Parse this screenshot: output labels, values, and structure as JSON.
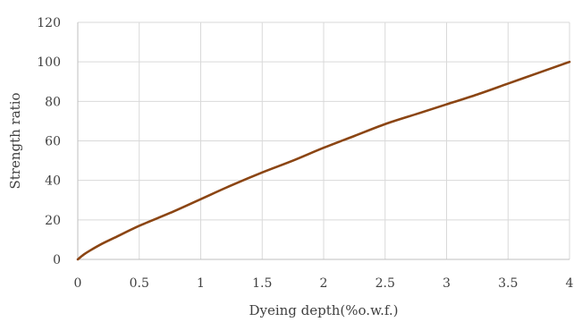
{
  "chart_data": {
    "type": "line",
    "title": "",
    "xlabel": "Dyeing depth(%o.w.f.)",
    "ylabel": "Strength ratio",
    "xlim": [
      0,
      4
    ],
    "ylim": [
      0,
      120
    ],
    "x_ticks": [
      "0",
      "0.5",
      "1",
      "1.5",
      "2",
      "2.5",
      "3",
      "3.5",
      "4"
    ],
    "y_ticks": [
      "0",
      "20",
      "40",
      "60",
      "80",
      "100",
      "120"
    ],
    "grid": true,
    "legend": "none",
    "series": [
      {
        "color": "#8B4513",
        "x": [
          0,
          0.05,
          0.1,
          0.2,
          0.3,
          0.5,
          0.75,
          1.0,
          1.25,
          1.5,
          1.75,
          2.0,
          2.25,
          2.5,
          2.75,
          3.0,
          3.25,
          3.5,
          3.75,
          4.0
        ],
        "y": [
          0,
          2.5,
          4.5,
          8,
          11,
          17,
          23.5,
          30.5,
          37.5,
          44,
          50,
          56.5,
          62.5,
          68.5,
          73.5,
          78.5,
          83.5,
          89,
          94.5,
          100
        ]
      }
    ]
  }
}
